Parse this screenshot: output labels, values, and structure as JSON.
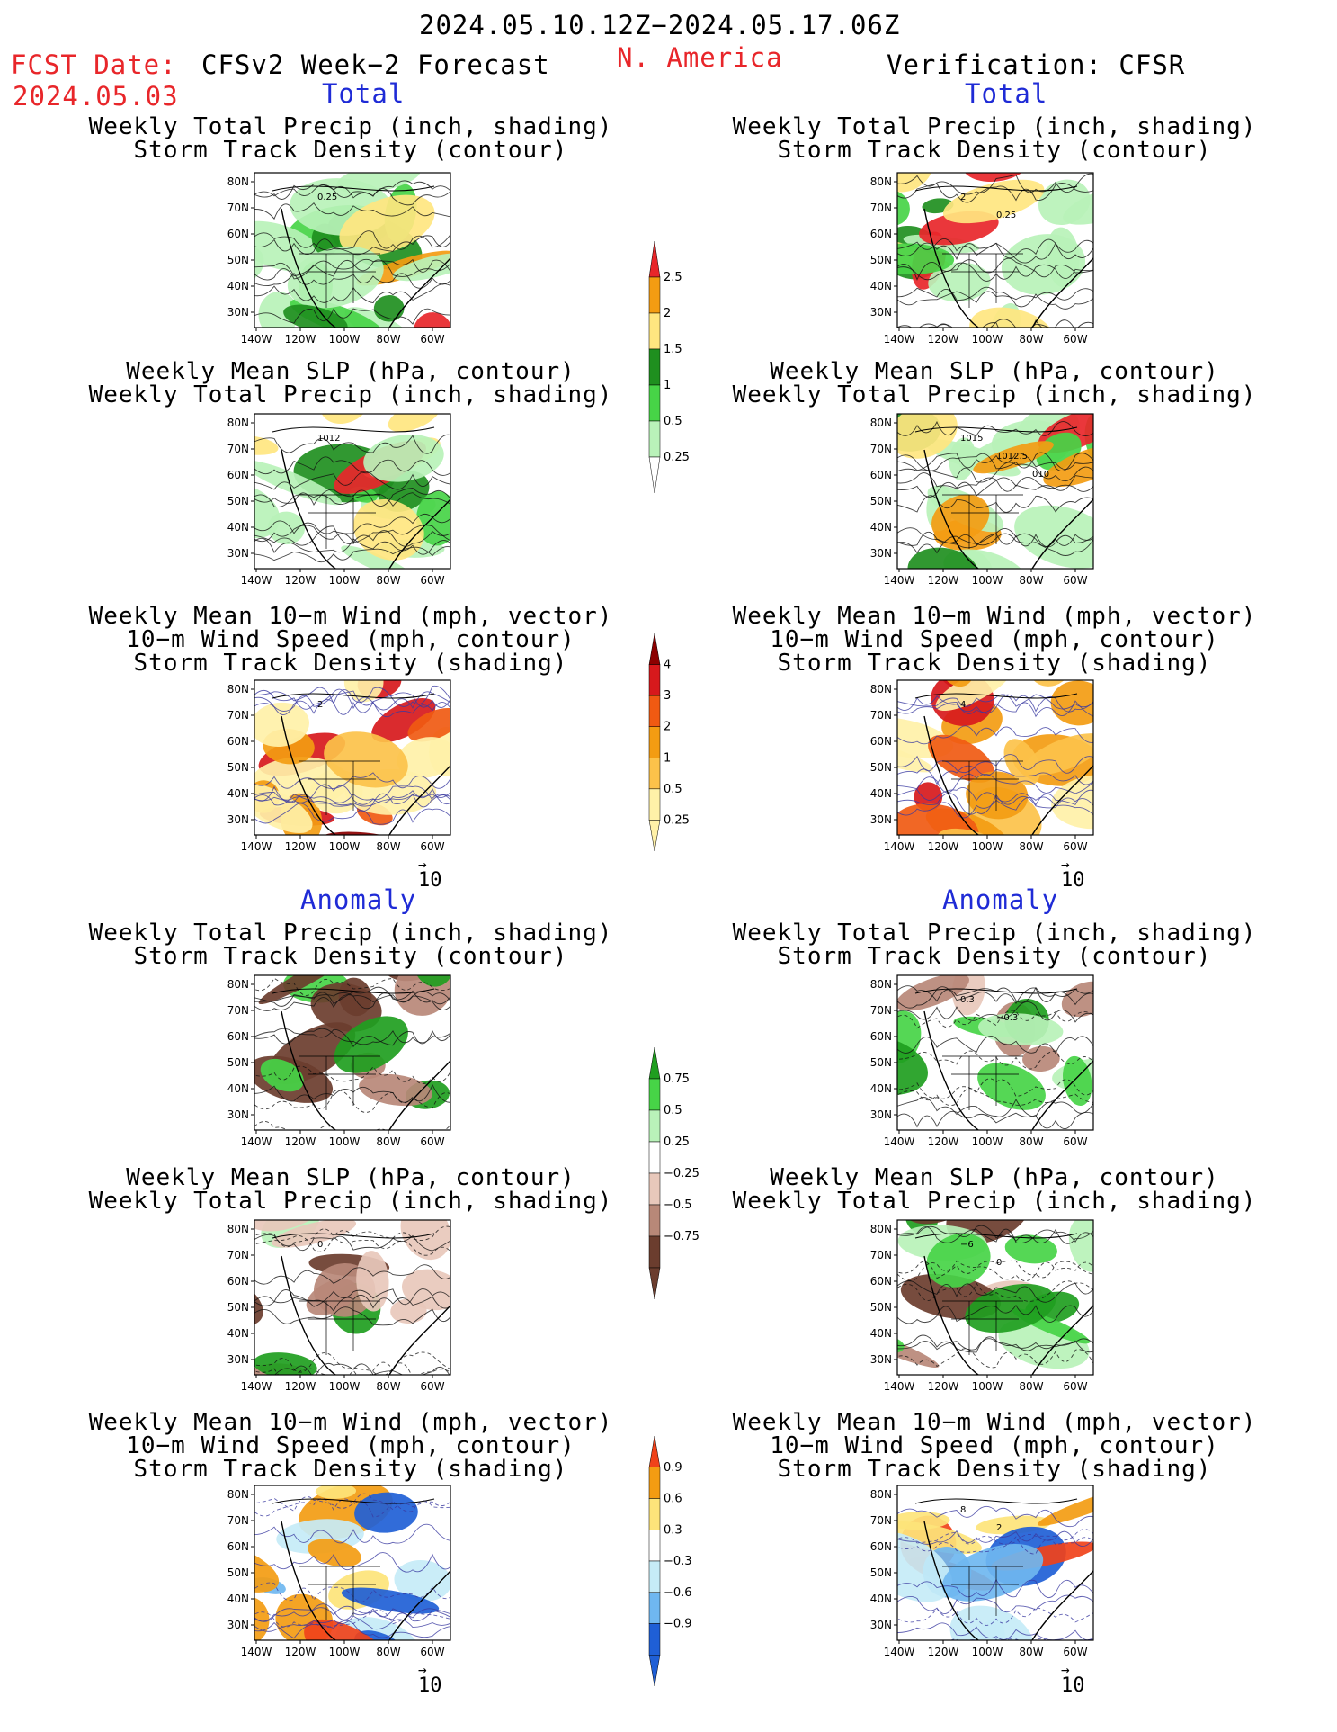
{
  "header": {
    "date_range": "2024.05.10.12Z−2024.05.17.06Z",
    "fcst_label": "FCST Date:",
    "fcst_date": "2024.05.03",
    "model": "CFSv2 Week−2 Forecast",
    "region": "N. America",
    "verification": "Verification: CFSR",
    "section_total": "Total",
    "section_anomaly": "Anomaly"
  },
  "axes": {
    "lat_ticks": [
      "80N",
      "70N",
      "60N",
      "50N",
      "40N",
      "30N"
    ],
    "lon_ticks": [
      "140W",
      "120W",
      "100W",
      "80W",
      "60W"
    ]
  },
  "panels": [
    {
      "id": "fcst-total-precip",
      "lines": [
        "Weekly Total Precip (inch, shading)",
        "Storm Track Density (contour)"
      ],
      "field": "precip",
      "contour_labels": [
        "0.25"
      ]
    },
    {
      "id": "fcst-total-slp",
      "lines": [
        "Weekly Mean SLP (hPa, contour)",
        "Weekly Total Precip (inch, shading)"
      ],
      "field": "precip",
      "contour_labels": [
        "1012"
      ]
    },
    {
      "id": "fcst-total-wind",
      "lines": [
        "Weekly Mean 10−m Wind (mph, vector)",
        "10−m Wind Speed (mph, contour)",
        "Storm Track Density (shading)"
      ],
      "field": "storm",
      "contour_labels": [
        "2"
      ]
    },
    {
      "id": "fcst-anom-precip",
      "lines": [
        "Weekly Total Precip (inch, shading)",
        "Storm Track Density (contour)"
      ],
      "field": "precip_anom",
      "contour_labels": []
    },
    {
      "id": "fcst-anom-slp",
      "lines": [
        "Weekly Mean SLP (hPa, contour)",
        "Weekly Total Precip (inch, shading)"
      ],
      "field": "precip_anom",
      "contour_labels": [
        "0"
      ]
    },
    {
      "id": "fcst-anom-wind",
      "lines": [
        "Weekly Mean 10−m Wind (mph, vector)",
        "10−m Wind Speed (mph, contour)",
        "Storm Track Density (shading)"
      ],
      "field": "storm_anom",
      "contour_labels": []
    },
    {
      "id": "ver-total-precip",
      "lines": [
        "Weekly Total Precip (inch, shading)",
        "Storm Track Density (contour)"
      ],
      "field": "precip",
      "contour_labels": [
        "2",
        "0.25"
      ]
    },
    {
      "id": "ver-total-slp",
      "lines": [
        "Weekly Mean SLP (hPa, contour)",
        "Weekly Total Precip (inch, shading)"
      ],
      "field": "precip",
      "contour_labels": [
        "1015",
        "1012.5",
        "010"
      ]
    },
    {
      "id": "ver-total-wind",
      "lines": [
        "Weekly Mean 10−m Wind (mph, vector)",
        "10−m Wind Speed (mph, contour)",
        "Storm Track Density (shading)"
      ],
      "field": "storm",
      "contour_labels": [
        "4"
      ]
    },
    {
      "id": "ver-anom-precip",
      "lines": [
        "Weekly Total Precip (inch, shading)",
        "Storm Track Density (contour)"
      ],
      "field": "precip_anom",
      "contour_labels": [
        "0.3",
        "−0.3"
      ]
    },
    {
      "id": "ver-anom-slp",
      "lines": [
        "Weekly Mean SLP (hPa, contour)",
        "Weekly Total Precip (inch, shading)"
      ],
      "field": "precip_anom",
      "contour_labels": [
        "−6",
        "0"
      ]
    },
    {
      "id": "ver-anom-wind",
      "lines": [
        "Weekly Mean 10−m Wind (mph, vector)",
        "10−m Wind Speed (mph, contour)",
        "Storm Track Density (shading)"
      ],
      "field": "storm_anom",
      "contour_labels": [
        "8",
        "2"
      ]
    }
  ],
  "vector_ref": "10",
  "colorbars": {
    "precip": {
      "labels": [
        "2.5",
        "2",
        "1.5",
        "1",
        "0.5",
        "0.25"
      ],
      "colors": [
        "#e8262a",
        "#f39c12",
        "#ffe680",
        "#1f8f1f",
        "#47d447",
        "#b9f2b9"
      ]
    },
    "storm": {
      "labels": [
        "4",
        "3",
        "2",
        "1",
        "0.5",
        "0.25"
      ],
      "colors": [
        "#8b0000",
        "#d7191c",
        "#f05a12",
        "#f39c12",
        "#fcc24a",
        "#fff1a8"
      ]
    },
    "precip_anom": {
      "labels": [
        "0.75",
        "0.5",
        "0.25",
        "−0.25",
        "−0.5",
        "−0.75"
      ],
      "colors": [
        "#1f9e1f",
        "#47d447",
        "#b9f2b9",
        "#ffffff",
        "#e8c8bb",
        "#b88878",
        "#6b3d2e"
      ]
    },
    "storm_anom": {
      "labels": [
        "0.9",
        "0.6",
        "0.3",
        "−0.3",
        "−0.6",
        "−0.9"
      ],
      "colors": [
        "#f0421a",
        "#f39c12",
        "#fde47a",
        "#ffffff",
        "#c6ecf7",
        "#6fb7f0",
        "#1f5fd6"
      ]
    }
  }
}
